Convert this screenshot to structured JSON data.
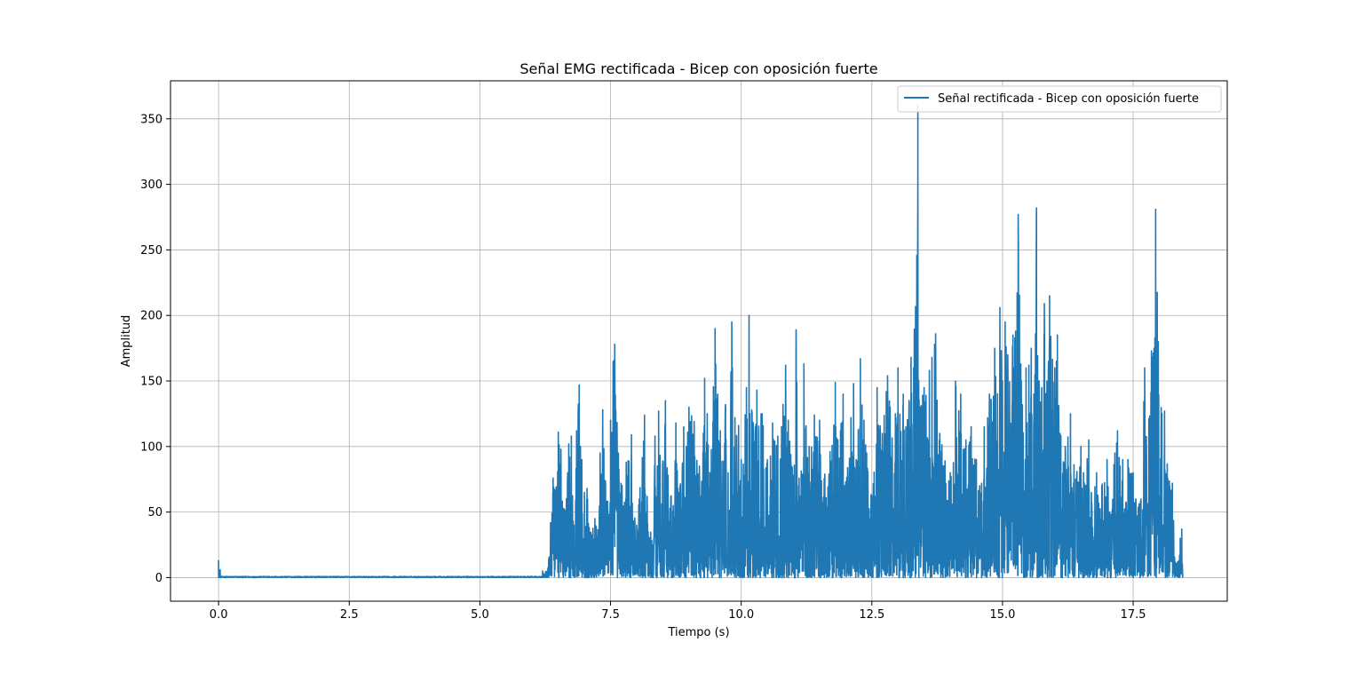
{
  "chart_data": {
    "type": "line",
    "title": "Señal EMG rectificada - Bicep con oposición fuerte",
    "xlabel": "Tiempo (s)",
    "ylabel": "Amplitud",
    "xlim": [
      -0.92,
      19.3
    ],
    "ylim": [
      -18,
      379
    ],
    "xticks": [
      0.0,
      2.5,
      5.0,
      7.5,
      10.0,
      12.5,
      15.0,
      17.5
    ],
    "xtick_labels": [
      "0.0",
      "2.5",
      "5.0",
      "7.5",
      "10.0",
      "12.5",
      "15.0",
      "17.5"
    ],
    "yticks": [
      0,
      50,
      100,
      150,
      200,
      250,
      300,
      350
    ],
    "ytick_labels": [
      "0",
      "50",
      "100",
      "150",
      "200",
      "250",
      "300",
      "350"
    ],
    "grid": true,
    "legend_position": "upper right",
    "colors": {
      "series": "#1f77b4",
      "grid": "#b0b0b0"
    },
    "series": [
      {
        "name": "Señal rectificada - Bicep con oposición fuerte",
        "color": "#1f77b4",
        "baseline_noise": {
          "x_range": [
            0.0,
            6.2
          ],
          "max_amplitude": 1.5
        },
        "duration": 18.45,
        "peaks": [
          [
            0.0,
            13
          ],
          [
            0.03,
            6
          ],
          [
            6.2,
            5
          ],
          [
            6.3,
            7
          ],
          [
            6.4,
            76
          ],
          [
            6.45,
            65
          ],
          [
            6.5,
            111
          ],
          [
            6.55,
            98
          ],
          [
            6.62,
            52
          ],
          [
            6.7,
            102
          ],
          [
            6.75,
            108
          ],
          [
            6.8,
            40
          ],
          [
            6.85,
            112
          ],
          [
            6.9,
            147
          ],
          [
            6.95,
            90
          ],
          [
            7.0,
            65
          ],
          [
            7.05,
            68
          ],
          [
            7.1,
            35
          ],
          [
            7.2,
            45
          ],
          [
            7.3,
            95
          ],
          [
            7.35,
            128
          ],
          [
            7.4,
            74
          ],
          [
            7.5,
            120
          ],
          [
            7.55,
            165
          ],
          [
            7.58,
            178
          ],
          [
            7.65,
            95
          ],
          [
            7.7,
            72
          ],
          [
            7.8,
            88
          ],
          [
            7.9,
            109
          ],
          [
            8.0,
            40
          ],
          [
            8.05,
            60
          ],
          [
            8.15,
            124
          ],
          [
            8.2,
            62
          ],
          [
            8.3,
            25
          ],
          [
            8.35,
            108
          ],
          [
            8.42,
            127
          ],
          [
            8.5,
            89
          ],
          [
            8.55,
            135
          ],
          [
            8.6,
            78
          ],
          [
            8.7,
            55
          ],
          [
            8.75,
            118
          ],
          [
            8.8,
            65
          ],
          [
            8.9,
            115
          ],
          [
            8.95,
            100
          ],
          [
            9.0,
            130
          ],
          [
            9.1,
            119
          ],
          [
            9.2,
            85
          ],
          [
            9.3,
            152
          ],
          [
            9.35,
            125
          ],
          [
            9.4,
            80
          ],
          [
            9.5,
            190
          ],
          [
            9.55,
            140
          ],
          [
            9.6,
            112
          ],
          [
            9.7,
            132
          ],
          [
            9.75,
            80
          ],
          [
            9.82,
            195
          ],
          [
            9.88,
            122
          ],
          [
            9.95,
            116
          ],
          [
            10.0,
            90
          ],
          [
            10.1,
            145
          ],
          [
            10.15,
            200
          ],
          [
            10.2,
            128
          ],
          [
            10.3,
            143
          ],
          [
            10.4,
            125
          ],
          [
            10.5,
            90
          ],
          [
            10.6,
            118
          ],
          [
            10.7,
            108
          ],
          [
            10.8,
            132
          ],
          [
            10.85,
            162
          ],
          [
            10.9,
            120
          ],
          [
            11.0,
            78
          ],
          [
            11.05,
            189
          ],
          [
            11.1,
            70
          ],
          [
            11.2,
            163
          ],
          [
            11.3,
            100
          ],
          [
            11.4,
            124
          ],
          [
            11.5,
            120
          ],
          [
            11.6,
            79
          ],
          [
            11.7,
            96
          ],
          [
            11.8,
            149
          ],
          [
            11.85,
            105
          ],
          [
            11.9,
            112
          ],
          [
            11.95,
            140
          ],
          [
            12.0,
            73
          ],
          [
            12.1,
            122
          ],
          [
            12.15,
            148
          ],
          [
            12.2,
            90
          ],
          [
            12.28,
            167
          ],
          [
            12.35,
            120
          ],
          [
            12.4,
            95
          ],
          [
            12.5,
            60
          ],
          [
            12.6,
            145
          ],
          [
            12.7,
            110
          ],
          [
            12.8,
            154
          ],
          [
            12.85,
            130
          ],
          [
            12.95,
            125
          ],
          [
            13.0,
            160
          ],
          [
            13.1,
            140
          ],
          [
            13.15,
            115
          ],
          [
            13.25,
            168
          ],
          [
            13.3,
            160
          ],
          [
            13.38,
            361
          ],
          [
            13.42,
            130
          ],
          [
            13.5,
            145
          ],
          [
            13.6,
            158
          ],
          [
            13.65,
            168
          ],
          [
            13.7,
            178
          ],
          [
            13.72,
            186
          ],
          [
            13.8,
            110
          ],
          [
            13.9,
            89
          ],
          [
            14.0,
            80
          ],
          [
            14.1,
            150
          ],
          [
            14.2,
            140
          ],
          [
            14.3,
            105
          ],
          [
            14.4,
            115
          ],
          [
            14.5,
            90
          ],
          [
            14.6,
            72
          ],
          [
            14.65,
            115
          ],
          [
            14.75,
            140
          ],
          [
            14.85,
            175
          ],
          [
            14.95,
            206
          ],
          [
            15.0,
            150
          ],
          [
            15.05,
            195
          ],
          [
            15.1,
            170
          ],
          [
            15.2,
            185
          ],
          [
            15.25,
            188
          ],
          [
            15.3,
            277
          ],
          [
            15.35,
            163
          ],
          [
            15.45,
            160
          ],
          [
            15.55,
            175
          ],
          [
            15.6,
            140
          ],
          [
            15.65,
            282
          ],
          [
            15.7,
            150
          ],
          [
            15.75,
            145
          ],
          [
            15.8,
            209
          ],
          [
            15.85,
            150
          ],
          [
            15.9,
            215
          ],
          [
            16.0,
            160
          ],
          [
            16.05,
            185
          ],
          [
            16.1,
            110
          ],
          [
            16.2,
            100
          ],
          [
            16.3,
            125
          ],
          [
            16.4,
            75
          ],
          [
            16.5,
            100
          ],
          [
            16.55,
            80
          ],
          [
            16.65,
            105
          ],
          [
            16.7,
            65
          ],
          [
            16.8,
            80
          ],
          [
            16.9,
            70
          ],
          [
            17.0,
            90
          ],
          [
            17.05,
            50
          ],
          [
            17.15,
            95
          ],
          [
            17.2,
            112
          ],
          [
            17.25,
            85
          ],
          [
            17.3,
            90
          ],
          [
            17.4,
            90
          ],
          [
            17.5,
            80
          ],
          [
            17.55,
            60
          ],
          [
            17.65,
            60
          ],
          [
            17.72,
            160
          ],
          [
            17.8,
            120
          ],
          [
            17.85,
            173
          ],
          [
            17.9,
            175
          ],
          [
            17.93,
            281
          ],
          [
            17.98,
            180
          ],
          [
            18.05,
            125
          ],
          [
            18.1,
            127
          ],
          [
            18.2,
            70
          ],
          [
            18.25,
            72
          ],
          [
            18.3,
            12
          ],
          [
            18.35,
            12
          ],
          [
            18.4,
            30
          ],
          [
            18.43,
            37
          ],
          [
            18.45,
            0
          ]
        ]
      }
    ]
  }
}
